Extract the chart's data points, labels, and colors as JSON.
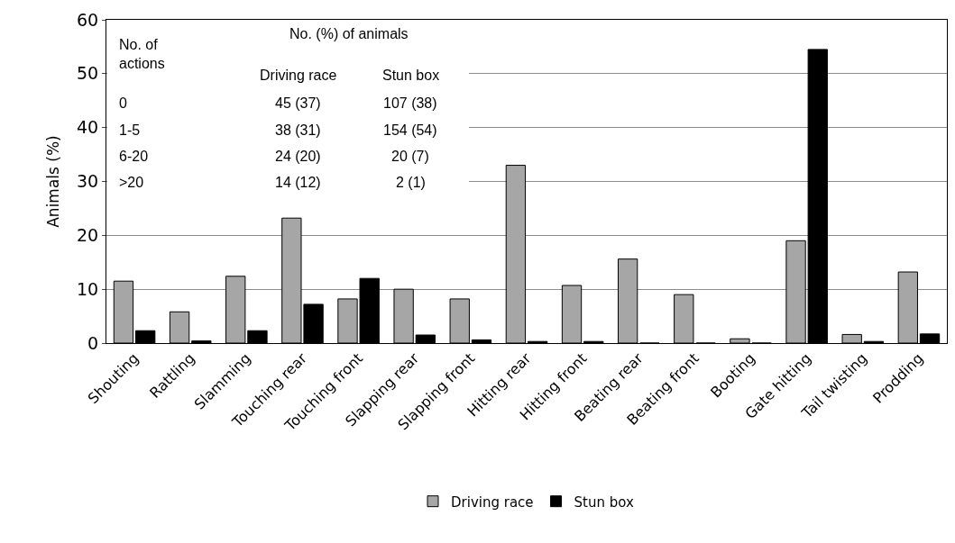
{
  "chart_data": {
    "type": "bar",
    "ylabel": "Animals (%)",
    "categories": [
      "Shouting",
      "Rattling",
      "Slamming",
      "Touching rear",
      "Touching front",
      "Slapping rear",
      "Slapping front",
      "Hitting rear",
      "Hitting front",
      "Beating rear",
      "Beating front",
      "Booting",
      "Gate hitting",
      "Tail twisting",
      "Prodding"
    ],
    "series": [
      {
        "name": "Driving race",
        "color": "#a6a6a6",
        "values": [
          11.5,
          5.8,
          12.4,
          23.2,
          8.2,
          10.0,
          8.2,
          33.0,
          10.7,
          15.6,
          9.0,
          0.8,
          19.0,
          1.6,
          13.2
        ]
      },
      {
        "name": "Stun box",
        "color": "#000000",
        "values": [
          2.3,
          0.4,
          2.3,
          7.2,
          12.0,
          1.5,
          0.6,
          0.3,
          0.3,
          0,
          0,
          0,
          54.5,
          0.3,
          1.7
        ]
      }
    ],
    "ylim": [
      0,
      60
    ],
    "yticks": [
      0,
      10,
      20,
      30,
      40,
      50,
      60
    ],
    "grid": "y",
    "legend": "bottom",
    "annotations": [
      "No. of\nactions",
      "No. (%) of animals",
      "Driving race",
      "Stun box",
      "0",
      "45 (37)",
      "107 (38)",
      "1-5",
      "38 (31)",
      "154 (54)",
      "6-20",
      "24 (20)",
      "20 (7)",
      ">20",
      "14 (12)",
      "2 (1)"
    ]
  }
}
